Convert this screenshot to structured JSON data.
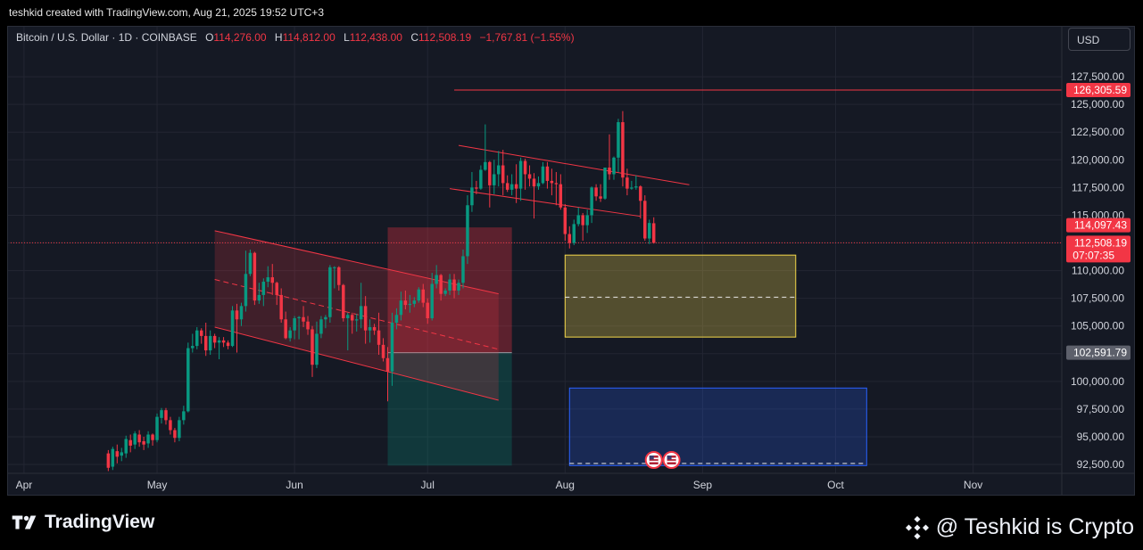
{
  "header": {
    "credit": "teshkid created with TradingView.com, Aug 21, 2025 19:52 UTC+3"
  },
  "symbol": {
    "name": "Bitcoin / U.S. Dollar · 1D · COINBASE",
    "open_label": "O",
    "open": "114,276.00",
    "high_label": "H",
    "high": "114,812.00",
    "low_label": "L",
    "low": "112,438.00",
    "close_label": "C",
    "close": "112,508.19",
    "change": "−1,767.81 (−1.55%)"
  },
  "currency_button": "USD",
  "colors": {
    "background": "#151924",
    "up": "#089981",
    "down": "#f23645",
    "grid": "#232632",
    "axis_text": "#d1d4dc",
    "yellow_zone": "#f5d94a",
    "blue_zone": "#2962ff",
    "gray_label": "#5d606b"
  },
  "chart_data": {
    "type": "candlestick",
    "title": "Bitcoin / U.S. Dollar · 1D · COINBASE",
    "yaxis_ticks": [
      "92,500.00",
      "95,000.00",
      "97,500.00",
      "100,000.00",
      "102,500.00",
      "105,000.00",
      "107,500.00",
      "110,000.00",
      "112,500.00",
      "115,000.00",
      "117,500.00",
      "120,000.00",
      "122,500.00",
      "125,000.00",
      "127,500.00"
    ],
    "ytick_values": [
      92500,
      95000,
      97500,
      100000,
      102500,
      105000,
      107500,
      110000,
      112500,
      115000,
      117500,
      120000,
      122500,
      125000,
      127500
    ],
    "ylim": [
      91700,
      129600
    ],
    "xaxis_ticks": [
      {
        "label": "Apr",
        "date": "2025-04-01"
      },
      {
        "label": "May",
        "date": "2025-05-01"
      },
      {
        "label": "Jun",
        "date": "2025-06-01"
      },
      {
        "label": "Jul",
        "date": "2025-07-01"
      },
      {
        "label": "Aug",
        "date": "2025-08-01"
      },
      {
        "label": "Sep",
        "date": "2025-09-01"
      },
      {
        "label": "Oct",
        "date": "2025-10-01"
      },
      {
        "label": "Nov",
        "date": "2025-11-01"
      }
    ],
    "x_range": [
      "2025-03-29",
      "2025-11-21"
    ],
    "price_labels": [
      {
        "text": "126,305.59",
        "value": 126305.59,
        "color": "#f23645"
      },
      {
        "text": "114,097.43",
        "value": 114097.43,
        "color": "#f23645"
      },
      {
        "text": "112,508.19",
        "value": 112508.19,
        "color": "#f23645",
        "sub": "07:07:35"
      },
      {
        "text": "102,591.79",
        "value": 102591.79,
        "color": "#5d606b"
      }
    ],
    "horizontal_lines": [
      {
        "value": 126305.59,
        "from": "2025-07-07",
        "to": "2025-11-21",
        "color": "#f23645",
        "style": "solid"
      },
      {
        "value": 112508.19,
        "from": "2025-03-29",
        "to": "2025-11-21",
        "color": "#f23645",
        "style": "dotted"
      }
    ],
    "zones": [
      {
        "name": "yellow-zone",
        "from": "2025-08-01",
        "to": "2025-09-22",
        "top": 111400,
        "bottom": 104000,
        "mid": 107600,
        "color": "#f5d94a"
      },
      {
        "name": "blue-zone",
        "from": "2025-08-02",
        "to": "2025-10-08",
        "top": 99400,
        "bottom": 92400,
        "mid": 92600,
        "color": "#2962ff"
      },
      {
        "name": "position-stop",
        "from": "2025-06-22",
        "to": "2025-07-20",
        "top": 113900,
        "bottom": 102591.79,
        "color": "#f23645"
      },
      {
        "name": "position-target",
        "from": "2025-06-22",
        "to": "2025-07-20",
        "top": 102591.79,
        "bottom": 92400,
        "color": "#089981"
      }
    ],
    "channels": [
      {
        "name": "descending-channel",
        "upper": [
          [
            "2025-05-14",
            113600
          ],
          [
            "2025-07-17",
            107900
          ]
        ],
        "lower": [
          [
            "2025-05-14",
            104900
          ],
          [
            "2025-07-17",
            98300
          ]
        ],
        "mid": [
          [
            "2025-05-14",
            109200
          ],
          [
            "2025-07-17",
            102900
          ]
        ],
        "fill": true
      },
      {
        "name": "flag-channel",
        "upper": [
          [
            "2025-07-08",
            121300
          ],
          [
            "2025-08-29",
            117750
          ]
        ],
        "lower": [
          [
            "2025-07-06",
            117400
          ],
          [
            "2025-08-18",
            114900
          ]
        ],
        "fill": false
      }
    ],
    "calendar_events": [
      {
        "date": "2025-08-21"
      },
      {
        "date": "2025-08-25"
      }
    ],
    "candles": [
      [
        "2025-04-20",
        93500,
        92200,
        91900,
        93800
      ],
      [
        "2025-04-21",
        92300,
        93900,
        92000,
        94100
      ],
      [
        "2025-04-22",
        93700,
        93200,
        92600,
        94300
      ],
      [
        "2025-04-23",
        93300,
        93600,
        92800,
        94000
      ],
      [
        "2025-04-24",
        93500,
        94800,
        93100,
        95100
      ],
      [
        "2025-04-25",
        94700,
        94200,
        93600,
        95200
      ],
      [
        "2025-04-26",
        94300,
        95300,
        93900,
        95500
      ],
      [
        "2025-04-27",
        95200,
        94500,
        94100,
        95600
      ],
      [
        "2025-04-28",
        94600,
        94300,
        93800,
        95000
      ],
      [
        "2025-04-29",
        94400,
        95200,
        94000,
        95500
      ],
      [
        "2025-04-30",
        95200,
        94700,
        94200,
        95300
      ],
      [
        "2025-05-01",
        94700,
        96800,
        94500,
        97100
      ],
      [
        "2025-05-02",
        96700,
        97400,
        96200,
        97600
      ],
      [
        "2025-05-03",
        97400,
        96500,
        96100,
        97600
      ],
      [
        "2025-05-04",
        96500,
        95600,
        95200,
        96800
      ],
      [
        "2025-05-05",
        95600,
        94900,
        94500,
        95800
      ],
      [
        "2025-05-06",
        94900,
        96500,
        94600,
        96800
      ],
      [
        "2025-05-07",
        96500,
        97300,
        96100,
        97800
      ],
      [
        "2025-05-08",
        97300,
        103000,
        97200,
        103500
      ],
      [
        "2025-05-09",
        103000,
        103200,
        102600,
        104300
      ],
      [
        "2025-05-10",
        103200,
        104600,
        102900,
        104900
      ],
      [
        "2025-05-11",
        104600,
        104100,
        103400,
        104800
      ],
      [
        "2025-05-12",
        104100,
        102800,
        102300,
        105300
      ],
      [
        "2025-05-13",
        102800,
        104100,
        102400,
        104600
      ],
      [
        "2025-05-14",
        104100,
        103500,
        103000,
        104300
      ],
      [
        "2025-05-15",
        103500,
        103700,
        102000,
        104000
      ],
      [
        "2025-05-16",
        103700,
        103500,
        103100,
        104000
      ],
      [
        "2025-05-17",
        103500,
        103200,
        102900,
        103700
      ],
      [
        "2025-05-18",
        103200,
        106400,
        103100,
        106800
      ],
      [
        "2025-05-19",
        106400,
        105600,
        102600,
        107000
      ],
      [
        "2025-05-20",
        105600,
        106800,
        105000,
        107100
      ],
      [
        "2025-05-21",
        106800,
        109700,
        106300,
        111800
      ],
      [
        "2025-05-22",
        109700,
        111600,
        109500,
        111900
      ],
      [
        "2025-05-23",
        111600,
        107300,
        106900,
        111700
      ],
      [
        "2025-05-24",
        107300,
        107800,
        107000,
        108900
      ],
      [
        "2025-05-25",
        107800,
        109000,
        106800,
        109300
      ],
      [
        "2025-05-26",
        109000,
        109400,
        108500,
        110400
      ],
      [
        "2025-05-27",
        109400,
        108900,
        107800,
        110600
      ],
      [
        "2025-05-28",
        108900,
        107800,
        106900,
        109000
      ],
      [
        "2025-05-29",
        107800,
        105600,
        105300,
        108400
      ],
      [
        "2025-05-30",
        105600,
        103900,
        103800,
        106300
      ],
      [
        "2025-05-31",
        103900,
        104600,
        103600,
        104900
      ],
      [
        "2025-06-01",
        104600,
        105700,
        103800,
        105900
      ],
      [
        "2025-06-02",
        105700,
        105800,
        103800,
        105900
      ],
      [
        "2025-06-03",
        105800,
        105400,
        104900,
        106800
      ],
      [
        "2025-06-04",
        105400,
        104700,
        104200,
        105900
      ],
      [
        "2025-06-05",
        104700,
        101500,
        100400,
        105000
      ],
      [
        "2025-06-06",
        101500,
        104300,
        101200,
        105400
      ],
      [
        "2025-06-07",
        104300,
        105600,
        103900,
        105900
      ],
      [
        "2025-06-08",
        105600,
        105800,
        104800,
        106000
      ],
      [
        "2025-06-09",
        105800,
        110300,
        105300,
        110500
      ],
      [
        "2025-06-10",
        110300,
        110300,
        108400,
        110400
      ],
      [
        "2025-06-11",
        110300,
        108700,
        108200,
        110400
      ],
      [
        "2025-06-12",
        108700,
        105700,
        105400,
        108800
      ],
      [
        "2025-06-13",
        105700,
        106000,
        102800,
        106200
      ],
      [
        "2025-06-14",
        106000,
        105500,
        104300,
        106200
      ],
      [
        "2025-06-15",
        105500,
        105600,
        104500,
        106100
      ],
      [
        "2025-06-16",
        105600,
        106800,
        104800,
        108900
      ],
      [
        "2025-06-17",
        106800,
        104600,
        103400,
        107700
      ],
      [
        "2025-06-18",
        104600,
        104900,
        103500,
        105600
      ],
      [
        "2025-06-19",
        104900,
        104600,
        104200,
        105200
      ],
      [
        "2025-06-20",
        104600,
        103300,
        102400,
        106200
      ],
      [
        "2025-06-21",
        103300,
        102100,
        101800,
        103900
      ],
      [
        "2025-06-22",
        102100,
        100900,
        98200,
        103100
      ],
      [
        "2025-06-23",
        100900,
        105300,
        99600,
        106200
      ],
      [
        "2025-06-24",
        105300,
        106000,
        104700,
        106600
      ],
      [
        "2025-06-25",
        106000,
        107300,
        105500,
        108100
      ],
      [
        "2025-06-26",
        107300,
        106900,
        106500,
        108200
      ],
      [
        "2025-06-27",
        106900,
        107000,
        106200,
        107800
      ],
      [
        "2025-06-28",
        107000,
        107300,
        106700,
        107600
      ],
      [
        "2025-06-29",
        107300,
        108300,
        107100,
        108500
      ],
      [
        "2025-06-30",
        108300,
        107100,
        106700,
        108800
      ],
      [
        "2025-07-01",
        107100,
        105700,
        105200,
        107500
      ],
      [
        "2025-07-02",
        105700,
        108800,
        105500,
        109800
      ],
      [
        "2025-07-03",
        108800,
        109600,
        108400,
        110500
      ],
      [
        "2025-07-04",
        109600,
        107900,
        107300,
        109700
      ],
      [
        "2025-07-05",
        107900,
        108200,
        107700,
        108400
      ],
      [
        "2025-07-06",
        108200,
        109200,
        107800,
        109700
      ],
      [
        "2025-07-07",
        109200,
        108200,
        107500,
        109700
      ],
      [
        "2025-07-08",
        108200,
        108900,
        107800,
        109200
      ],
      [
        "2025-07-09",
        108900,
        111300,
        108400,
        111900
      ],
      [
        "2025-07-10",
        111300,
        115900,
        110600,
        116800
      ],
      [
        "2025-07-11",
        115900,
        117500,
        115300,
        118900
      ],
      [
        "2025-07-12",
        117500,
        117400,
        116900,
        118100
      ],
      [
        "2025-07-13",
        117400,
        119100,
        117300,
        119500
      ],
      [
        "2025-07-14",
        119100,
        119800,
        119000,
        123200
      ],
      [
        "2025-07-15",
        119800,
        117700,
        115700,
        119900
      ],
      [
        "2025-07-16",
        117700,
        118700,
        116900,
        120000
      ],
      [
        "2025-07-17",
        118700,
        119500,
        117600,
        120800
      ],
      [
        "2025-07-18",
        119500,
        117900,
        116800,
        120900
      ],
      [
        "2025-07-19",
        117900,
        117300,
        117100,
        118600
      ],
      [
        "2025-07-20",
        117300,
        117800,
        116800,
        118700
      ],
      [
        "2025-07-21",
        117800,
        117400,
        116100,
        119600
      ],
      [
        "2025-07-22",
        117400,
        119900,
        116300,
        120200
      ],
      [
        "2025-07-23",
        119900,
        118700,
        117300,
        120100
      ],
      [
        "2025-07-24",
        118700,
        118300,
        117600,
        119500
      ],
      [
        "2025-07-25",
        118300,
        117600,
        114700,
        118800
      ],
      [
        "2025-07-26",
        117600,
        117900,
        117300,
        118500
      ],
      [
        "2025-07-27",
        117900,
        119400,
        117800,
        119800
      ],
      [
        "2025-07-28",
        119400,
        118100,
        117400,
        119800
      ],
      [
        "2025-07-29",
        118100,
        117900,
        116800,
        119200
      ],
      [
        "2025-07-30",
        117900,
        117800,
        115900,
        118900
      ],
      [
        "2025-07-31",
        117800,
        115700,
        115500,
        118700
      ],
      [
        "2025-08-01",
        115700,
        113300,
        112700,
        116000
      ],
      [
        "2025-08-02",
        113300,
        112500,
        112000,
        114000
      ],
      [
        "2025-08-03",
        112500,
        114200,
        112300,
        114600
      ],
      [
        "2025-08-04",
        114200,
        115000,
        114000,
        115700
      ],
      [
        "2025-08-05",
        115000,
        114100,
        112700,
        115200
      ],
      [
        "2025-08-06",
        114100,
        115000,
        113400,
        115500
      ],
      [
        "2025-08-07",
        115000,
        117500,
        114300,
        117600
      ],
      [
        "2025-08-08",
        117500,
        116700,
        116300,
        117800
      ],
      [
        "2025-08-09",
        116700,
        116500,
        116200,
        117800
      ],
      [
        "2025-08-10",
        116500,
        119300,
        116400,
        119300
      ],
      [
        "2025-08-11",
        119300,
        118700,
        118200,
        122300
      ],
      [
        "2025-08-12",
        118700,
        120200,
        118200,
        120300
      ],
      [
        "2025-08-13",
        120200,
        123400,
        118900,
        123700
      ],
      [
        "2025-08-14",
        123400,
        118400,
        117600,
        124400
      ],
      [
        "2025-08-15",
        118400,
        117400,
        116800,
        119200
      ],
      [
        "2025-08-16",
        117400,
        117500,
        117300,
        118100
      ],
      [
        "2025-08-17",
        117500,
        117600,
        117300,
        118600
      ],
      [
        "2025-08-18",
        117600,
        116300,
        114700,
        117700
      ],
      [
        "2025-08-19",
        116300,
        112900,
        112700,
        116800
      ],
      [
        "2025-08-20",
        112900,
        114300,
        112400,
        114600
      ],
      [
        "2025-08-21",
        114276,
        112508.19,
        112438,
        114812
      ]
    ]
  },
  "footer": {
    "platform": "TradingView",
    "watermark": "@ Teshkid is Crypto"
  }
}
